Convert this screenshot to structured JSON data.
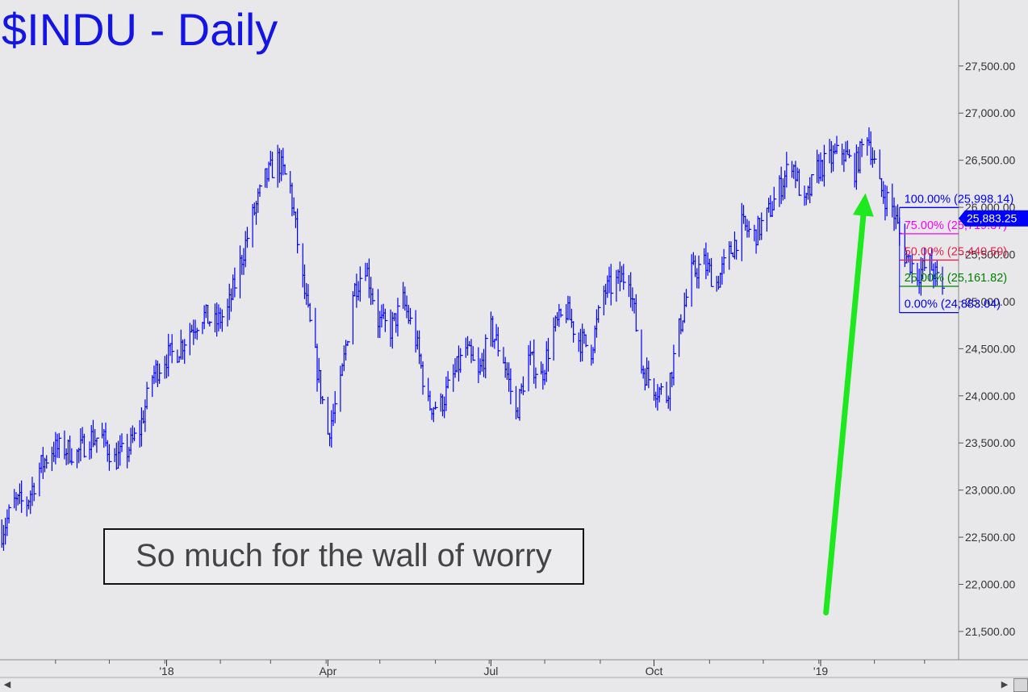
{
  "header": {
    "title": "$INDU - Daily"
  },
  "annotation": {
    "text": "So much for the wall of worry"
  },
  "colors": {
    "background": "#e8e8ea",
    "price": "#0000ff",
    "title": "#1414e6",
    "arrow": "#1ee81e",
    "fib_100": "#0000ff",
    "fib_75": "#ff00ff",
    "fib_50": "#e8204a",
    "fib_25": "#008000",
    "fib_0": "#0000ff",
    "last_price_bg": "#0000ff"
  },
  "chart_data": {
    "type": "ohlc",
    "title": "$INDU - Daily",
    "ylim": [
      21200,
      28200
    ],
    "yticks": [
      21500,
      22000,
      22500,
      23000,
      23500,
      24000,
      24500,
      25000,
      25500,
      26000,
      26500,
      27000,
      27500
    ],
    "ytick_labels": [
      "21,500.00",
      "22,000.00",
      "22,500.00",
      "23,000.00",
      "23,500.00",
      "24,000.00",
      "24,500.00",
      "25,000.00",
      "25,500.00",
      "26,000.00",
      "26,500.00",
      "27,000.00",
      "27,500.00"
    ],
    "xlim": [
      "2017-10-01",
      "2019-03-20"
    ],
    "xticks": [
      {
        "date": "2018-01-02",
        "label": "'18"
      },
      {
        "date": "2018-04-02",
        "label": "Apr"
      },
      {
        "date": "2018-07-02",
        "label": "Jul"
      },
      {
        "date": "2018-10-01",
        "label": "Oct"
      },
      {
        "date": "2019-01-02",
        "label": "'19"
      }
    ],
    "series": [
      {
        "points": [
          [
            "2017-10-02",
            22560
          ],
          [
            "2017-10-09",
            22860
          ],
          [
            "2017-10-16",
            22870
          ],
          [
            "2017-10-23",
            23230
          ],
          [
            "2017-10-30",
            23430
          ],
          [
            "2017-11-06",
            23440
          ],
          [
            "2017-11-13",
            23380
          ],
          [
            "2017-11-20",
            23560
          ],
          [
            "2017-11-27",
            23550
          ],
          [
            "2017-12-04",
            23320
          ],
          [
            "2017-12-11",
            23420
          ],
          [
            "2017-12-18",
            23640
          ],
          [
            "2017-12-25",
            24210
          ],
          [
            "2018-01-01",
            24400
          ],
          [
            "2018-01-08",
            24480
          ],
          [
            "2018-01-15",
            24700
          ],
          [
            "2018-01-22",
            24860
          ],
          [
            "2018-01-29",
            24760
          ],
          [
            "2018-02-05",
            24900
          ],
          [
            "2018-02-12",
            25400
          ],
          [
            "2018-02-19",
            25900
          ],
          [
            "2018-02-26",
            26300
          ],
          [
            "2018-03-05",
            26500
          ],
          [
            "2018-03-12",
            26200
          ],
          [
            "2018-03-19",
            25200
          ],
          [
            "2018-03-26",
            24400
          ],
          [
            "2018-04-02",
            23600
          ],
          [
            "2018-04-09",
            24100
          ],
          [
            "2018-04-16",
            25100
          ],
          [
            "2018-04-23",
            25400
          ],
          [
            "2018-04-30",
            24800
          ],
          [
            "2018-05-07",
            24700
          ],
          [
            "2018-05-14",
            25000
          ],
          [
            "2018-05-21",
            24600
          ],
          [
            "2018-05-28",
            23900
          ],
          [
            "2018-06-04",
            23900
          ],
          [
            "2018-06-11",
            24200
          ],
          [
            "2018-06-18",
            24500
          ],
          [
            "2018-06-25",
            24200
          ],
          [
            "2018-07-02",
            24700
          ],
          [
            "2018-07-09",
            24400
          ],
          [
            "2018-07-16",
            23800
          ],
          [
            "2018-07-23",
            24400
          ],
          [
            "2018-07-30",
            24200
          ],
          [
            "2018-08-06",
            24700
          ],
          [
            "2018-08-13",
            24900
          ],
          [
            "2018-08-20",
            24600
          ],
          [
            "2018-08-27",
            24500
          ],
          [
            "2018-09-03",
            25100
          ],
          [
            "2018-09-10",
            25200
          ],
          [
            "2018-09-17",
            25300
          ],
          [
            "2018-09-24",
            24300
          ],
          [
            "2018-10-01",
            24100
          ],
          [
            "2018-10-08",
            24000
          ],
          [
            "2018-10-15",
            24700
          ],
          [
            "2018-10-22",
            25300
          ],
          [
            "2018-10-29",
            25400
          ],
          [
            "2018-11-05",
            25200
          ],
          [
            "2018-11-12",
            25500
          ],
          [
            "2018-11-19",
            25800
          ],
          [
            "2018-11-26",
            25700
          ],
          [
            "2018-12-03",
            25900
          ],
          [
            "2018-12-10",
            26200
          ],
          [
            "2018-12-17",
            26500
          ],
          [
            "2018-12-24",
            26000
          ],
          [
            "2018-12-31",
            26400
          ],
          [
            "2019-01-07",
            26500
          ],
          [
            "2019-01-14",
            26600
          ],
          [
            "2019-01-21",
            26400
          ],
          [
            "2019-01-28",
            26800
          ],
          [
            "2019-02-04",
            26200
          ],
          [
            "2019-02-11",
            26000
          ],
          [
            "2019-02-18",
            25500
          ],
          [
            "2019-02-25",
            25300
          ],
          [
            "2019-03-04",
            25400
          ],
          [
            "2019-03-11",
            25100
          ]
        ]
      }
    ],
    "fib_levels": [
      {
        "label": "100.00% (25,998.14)",
        "value": 25998.14,
        "color": "#0000ff"
      },
      {
        "label": "75.00% (25,719.37)",
        "value": 25719.37,
        "color": "#ff00ff"
      },
      {
        "label": "50.00% (25,440.59)",
        "value": 25440.59,
        "color": "#e8204a"
      },
      {
        "label": "25.00% (25,161.82)",
        "value": 25161.82,
        "color": "#008000"
      },
      {
        "label": "0.00% (24,883.04)",
        "value": 24883.04,
        "color": "#0000ff"
      }
    ],
    "last_price": {
      "label": "25,883.25",
      "value": 25883.25
    },
    "arrow": {
      "from": [
        "2019-01-05",
        21700
      ],
      "to": [
        "2019-01-27",
        26150
      ]
    }
  }
}
